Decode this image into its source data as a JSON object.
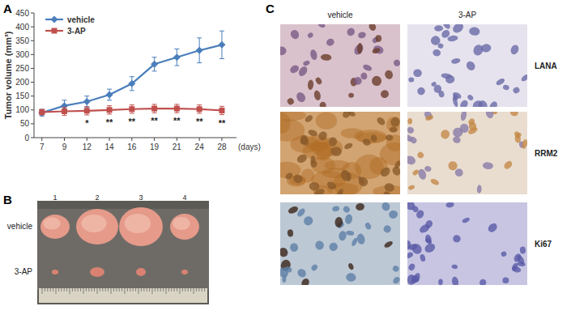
{
  "chart_data": {
    "type": "line",
    "panel_label": "A",
    "y_label": "Tumor volume (mm³)",
    "x_label": "(days)",
    "categories": [
      "7",
      "9",
      "12",
      "14",
      "16",
      "19",
      "21",
      "24",
      "28"
    ],
    "ylim": [
      0,
      450
    ],
    "yticks": [
      0,
      50,
      100,
      150,
      200,
      250,
      300,
      350,
      400,
      450
    ],
    "legend": "upper left",
    "series": [
      {
        "name": "vehicle",
        "color": "#4a7ebb",
        "marker": "diamond",
        "values": [
          90,
          115,
          130,
          155,
          195,
          265,
          290,
          315,
          335
        ],
        "error": [
          12,
          20,
          20,
          20,
          25,
          25,
          30,
          45,
          50
        ]
      },
      {
        "name": "3-AP",
        "color": "#c0504d",
        "marker": "square",
        "values": [
          92,
          95,
          97,
          100,
          103,
          105,
          105,
          103,
          98
        ],
        "error": [
          10,
          15,
          15,
          15,
          15,
          15,
          15,
          15,
          15
        ]
      }
    ],
    "significance": [
      null,
      null,
      "*",
      "**",
      "**",
      "**",
      "**",
      "**",
      "**"
    ]
  },
  "panel_b": {
    "label": "B",
    "lanes": [
      "1",
      "2",
      "3",
      "4"
    ],
    "rows": [
      "vehicle",
      "3-AP"
    ]
  },
  "panel_c": {
    "label": "C",
    "columns": [
      "vehicle",
      "3-AP"
    ],
    "rows": [
      "LANA",
      "RRM2",
      "Ki67"
    ]
  }
}
